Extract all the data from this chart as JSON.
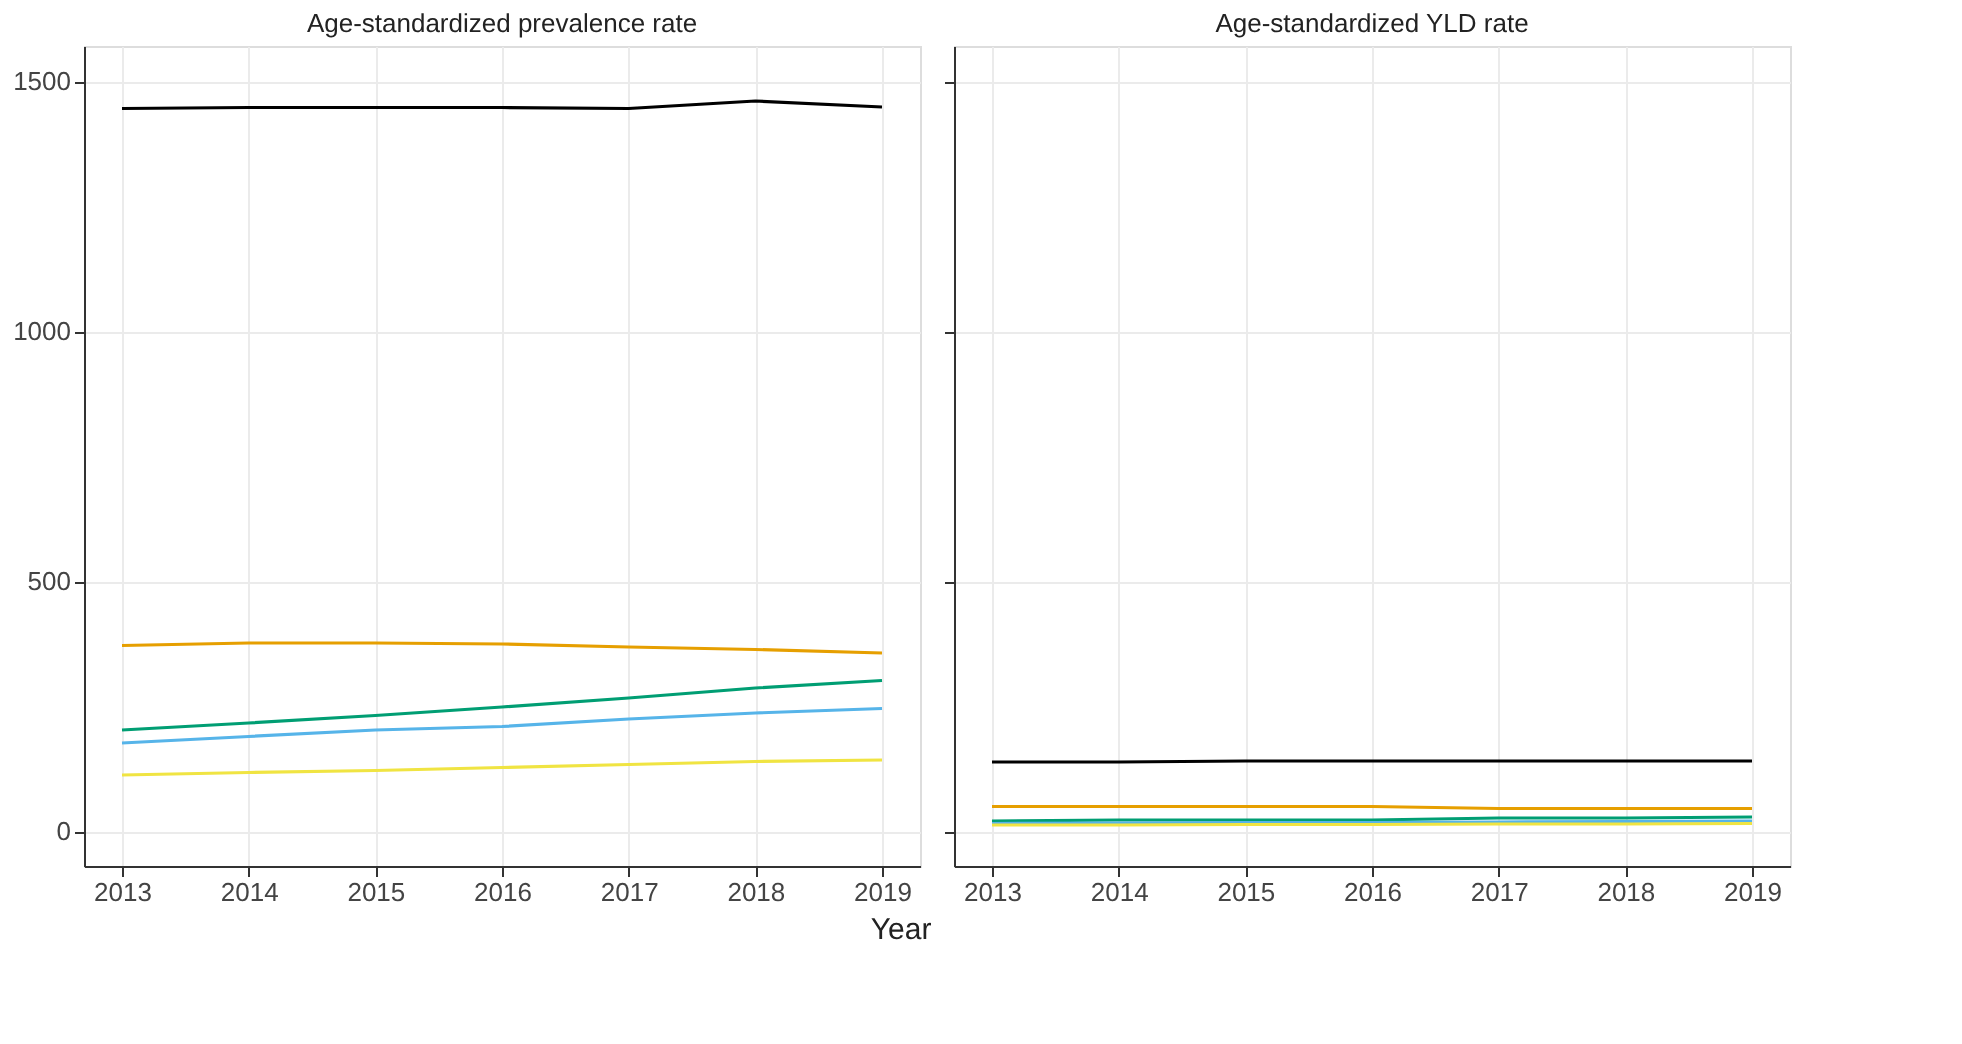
{
  "chart_data": [
    {
      "type": "line",
      "title": "Age-standardized prevalence rate",
      "xlabel": "Year",
      "x": [
        2013,
        2014,
        2015,
        2016,
        2017,
        2018,
        2019
      ],
      "xlim": [
        2012.7,
        2019.3
      ],
      "xticks": [
        2013,
        2014,
        2015,
        2016,
        2017,
        2018,
        2019
      ],
      "ylim": [
        -70,
        1570
      ],
      "yticks": [
        0,
        500,
        1000,
        1500
      ],
      "grid": true,
      "legend": false,
      "series": [
        {
          "color": "#000000",
          "values": [
            1445,
            1447,
            1447,
            1447,
            1445,
            1460,
            1448
          ]
        },
        {
          "color": "#E69F00",
          "values": [
            371,
            376,
            376,
            374,
            368,
            363,
            356
          ]
        },
        {
          "color": "#009E73",
          "values": [
            202,
            216,
            231,
            248,
            266,
            286,
            301
          ]
        },
        {
          "color": "#56B4E9",
          "values": [
            176,
            189,
            202,
            209,
            224,
            236,
            245
          ]
        },
        {
          "color": "#F0E442",
          "values": [
            112,
            117,
            121,
            127,
            133,
            139,
            142
          ]
        }
      ]
    },
    {
      "type": "line",
      "title": "Age-standardized YLD rate",
      "x": [
        2013,
        2014,
        2015,
        2016,
        2017,
        2018,
        2019
      ],
      "xlim": [
        2012.7,
        2019.3
      ],
      "xticks": [
        2013,
        2014,
        2015,
        2016,
        2017,
        2018,
        2019
      ],
      "ylim": [
        -70,
        1570
      ],
      "yticks": [
        0,
        500,
        1000,
        1500
      ],
      "grid": true,
      "legend": false,
      "tick_labels": "x",
      "series": [
        {
          "color": "#000000",
          "values": [
            138,
            138,
            140,
            140,
            140,
            140,
            140
          ]
        },
        {
          "color": "#E69F00",
          "values": [
            49,
            49,
            49,
            49,
            45,
            45,
            45
          ]
        },
        {
          "color": "#009E73",
          "values": [
            20,
            22,
            22,
            22,
            26,
            26,
            28
          ]
        },
        {
          "color": "#56B4E9",
          "values": [
            15,
            16,
            17,
            17,
            18,
            19,
            20
          ]
        },
        {
          "color": "#F0E442",
          "values": [
            12,
            12,
            13,
            13,
            14,
            14,
            15
          ]
        }
      ]
    }
  ]
}
